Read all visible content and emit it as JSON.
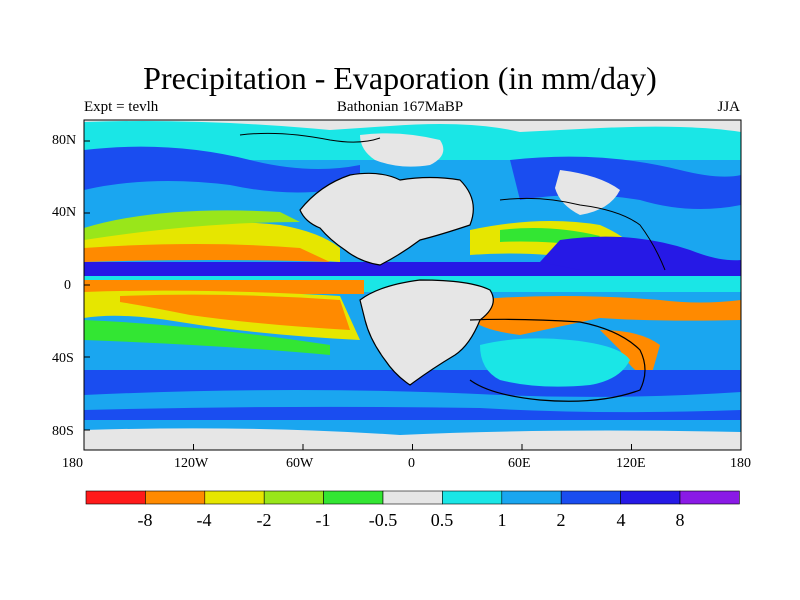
{
  "title": "Precipitation - Evaporation (in mm/day)",
  "left_label": "Expt = tevlh",
  "center_label": "Bathonian 167MaBP",
  "right_label": "JJA",
  "x_ticks": [
    "180",
    "120W",
    "60W",
    "0",
    "60E",
    "120E",
    "180"
  ],
  "y_ticks": [
    "80N",
    "40N",
    "0",
    "40S",
    "80S"
  ],
  "colorbar": {
    "labels": [
      "-8",
      "-4",
      "-2",
      "-1",
      "-0.5",
      "0.5",
      "1",
      "2",
      "4",
      "8"
    ],
    "colors": [
      "#ff1a1a",
      "#ff8a00",
      "#e6e600",
      "#99e61a",
      "#33e633",
      "#e6e6e6",
      "#1ae6e6",
      "#1aa6f0",
      "#1a4df0",
      "#2619e6",
      "#8a1ae6"
    ]
  },
  "palette": {
    "land": "#e6e6e6",
    "deep_blue": "#1a4df0",
    "mid_blue": "#1aa6f0",
    "cyan": "#1ae6e6",
    "green": "#33e633",
    "yellow_green": "#99e61a",
    "yellow": "#e6e600",
    "orange": "#ff8a00",
    "red": "#ff1a1a",
    "indigo": "#2619e6",
    "coast": "#000000"
  }
}
